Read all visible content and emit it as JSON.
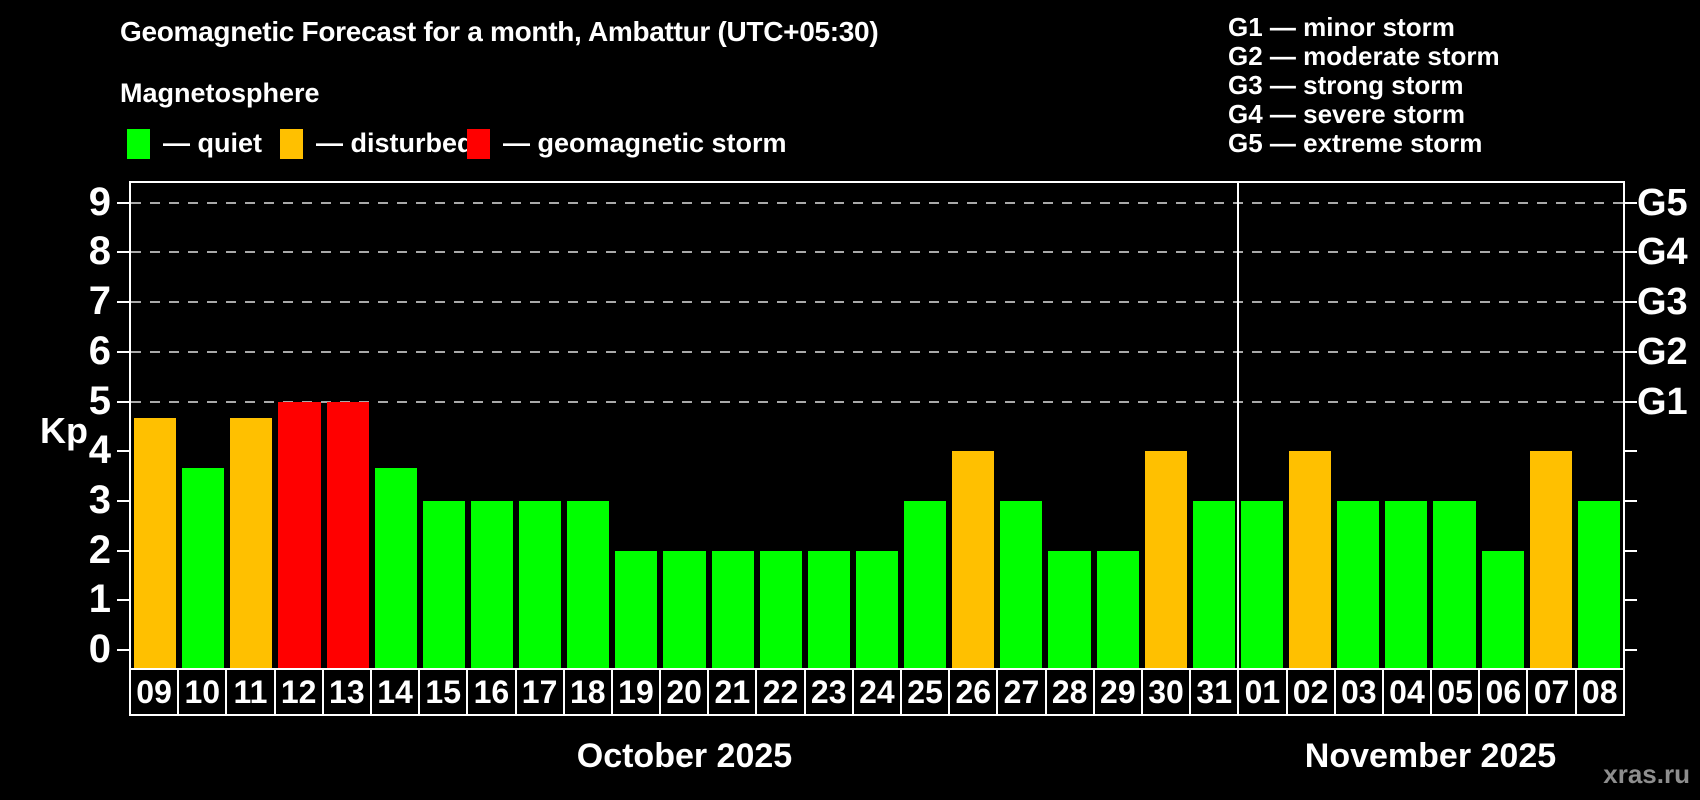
{
  "title": "Geomagnetic Forecast for a month, Ambattur (UTC+05:30)",
  "subtitle": "Magnetosphere",
  "legend": {
    "items": [
      {
        "key": "quiet",
        "label": "— quiet",
        "color": "#00ff00"
      },
      {
        "key": "disturbed",
        "label": "— disturbed",
        "color": "#ffc000"
      },
      {
        "key": "storm",
        "label": "— geomagnetic storm",
        "color": "#ff0000"
      }
    ]
  },
  "storm_scale_legend": {
    "items": [
      "G1 — minor storm",
      "G2 — moderate storm",
      "G3 — strong storm",
      "G4 — severe storm",
      "G5 — extreme storm"
    ]
  },
  "watermark": "xras.ru",
  "chart_data": {
    "type": "bar",
    "ylabel": "Kp",
    "ylim": [
      0,
      9
    ],
    "y_ticks": [
      0,
      1,
      2,
      3,
      4,
      5,
      6,
      7,
      8,
      9
    ],
    "grid_levels_kp": [
      5,
      6,
      7,
      8,
      9
    ],
    "grid_style": "dashed",
    "legend_position": "top",
    "right_axis_labels": [
      {
        "label": "G1",
        "kp": 5
      },
      {
        "label": "G2",
        "kp": 6
      },
      {
        "label": "G3",
        "kp": 7
      },
      {
        "label": "G4",
        "kp": 8
      },
      {
        "label": "G5",
        "kp": 9
      }
    ],
    "months": [
      {
        "label": "October 2025",
        "days": 23
      },
      {
        "label": "November 2025",
        "days": 8
      }
    ],
    "status_colors": {
      "quiet": "#00ff00",
      "disturbed": "#ffc000",
      "storm": "#ff0000"
    },
    "days": [
      {
        "date": "09",
        "kp": 4.67,
        "status": "disturbed"
      },
      {
        "date": "10",
        "kp": 3.67,
        "status": "quiet"
      },
      {
        "date": "11",
        "kp": 4.67,
        "status": "disturbed"
      },
      {
        "date": "12",
        "kp": 5,
        "status": "storm"
      },
      {
        "date": "13",
        "kp": 5,
        "status": "storm"
      },
      {
        "date": "14",
        "kp": 3.67,
        "status": "quiet"
      },
      {
        "date": "15",
        "kp": 3,
        "status": "quiet"
      },
      {
        "date": "16",
        "kp": 3,
        "status": "quiet"
      },
      {
        "date": "17",
        "kp": 3,
        "status": "quiet"
      },
      {
        "date": "18",
        "kp": 3,
        "status": "quiet"
      },
      {
        "date": "19",
        "kp": 2,
        "status": "quiet"
      },
      {
        "date": "20",
        "kp": 2,
        "status": "quiet"
      },
      {
        "date": "21",
        "kp": 2,
        "status": "quiet"
      },
      {
        "date": "22",
        "kp": 2,
        "status": "quiet"
      },
      {
        "date": "23",
        "kp": 2,
        "status": "quiet"
      },
      {
        "date": "24",
        "kp": 2,
        "status": "quiet"
      },
      {
        "date": "25",
        "kp": 3,
        "status": "quiet"
      },
      {
        "date": "26",
        "kp": 4,
        "status": "disturbed"
      },
      {
        "date": "27",
        "kp": 3,
        "status": "quiet"
      },
      {
        "date": "28",
        "kp": 2,
        "status": "quiet"
      },
      {
        "date": "29",
        "kp": 2,
        "status": "quiet"
      },
      {
        "date": "30",
        "kp": 4,
        "status": "disturbed"
      },
      {
        "date": "31",
        "kp": 3,
        "status": "quiet"
      },
      {
        "date": "01",
        "kp": 3,
        "status": "quiet"
      },
      {
        "date": "02",
        "kp": 4,
        "status": "disturbed"
      },
      {
        "date": "03",
        "kp": 3,
        "status": "quiet"
      },
      {
        "date": "04",
        "kp": 3,
        "status": "quiet"
      },
      {
        "date": "05",
        "kp": 3,
        "status": "quiet"
      },
      {
        "date": "06",
        "kp": 2,
        "status": "quiet"
      },
      {
        "date": "07",
        "kp": 4,
        "status": "disturbed"
      },
      {
        "date": "08",
        "kp": 3,
        "status": "quiet"
      }
    ]
  }
}
